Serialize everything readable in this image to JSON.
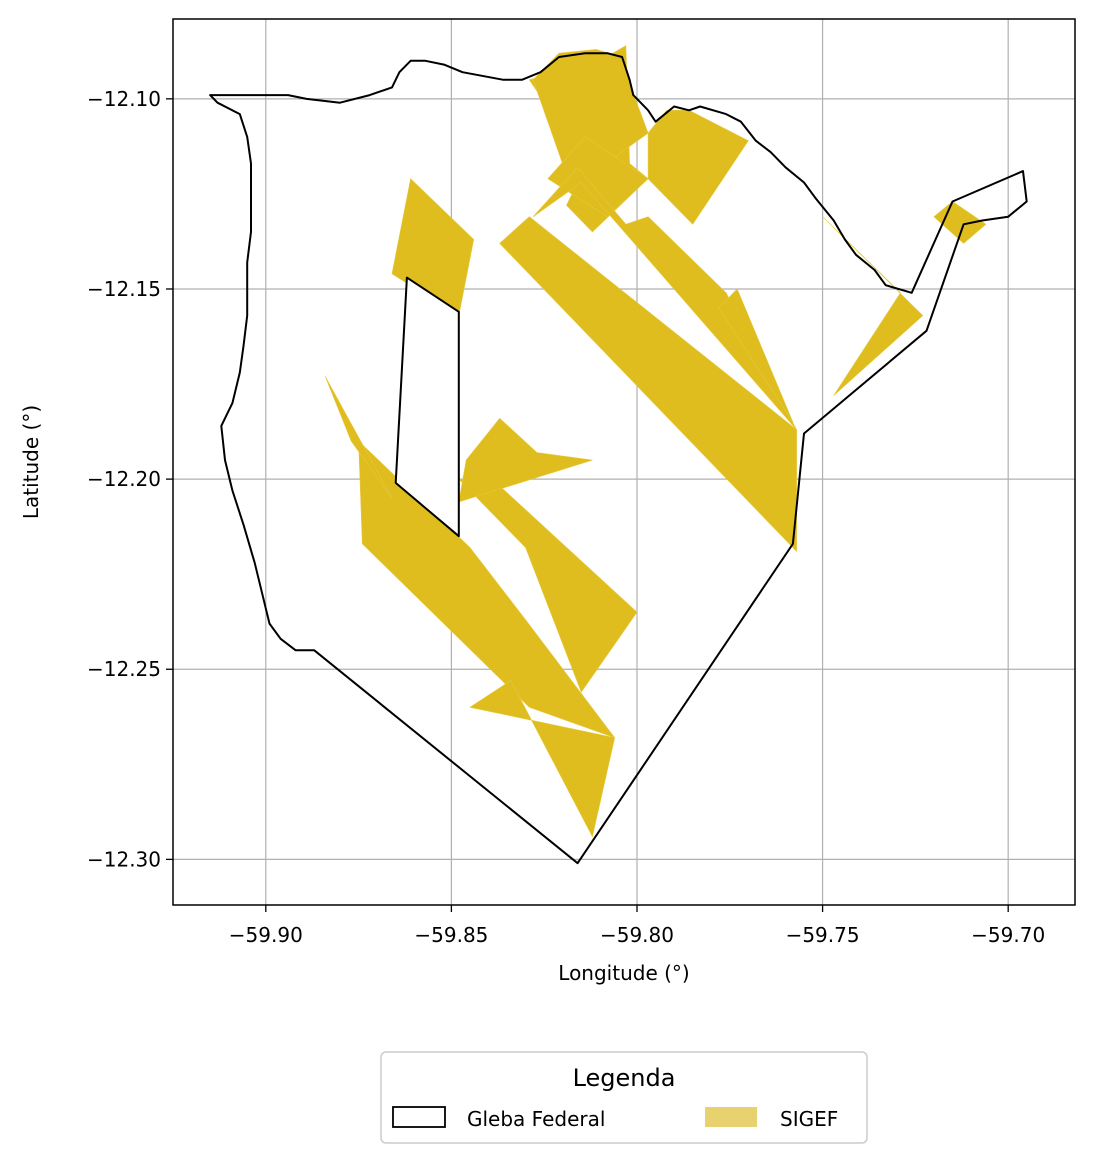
{
  "chart_data": {
    "type": "map",
    "xlabel": "Longitude (°)",
    "ylabel": "Latitude (°)",
    "xlim": [
      -59.925,
      -59.682
    ],
    "ylim": [
      -12.312,
      -12.079
    ],
    "grid": true,
    "x_ticks": [
      {
        "value": -59.9,
        "label": "−59.90"
      },
      {
        "value": -59.85,
        "label": "−59.85"
      },
      {
        "value": -59.8,
        "label": "−59.80"
      },
      {
        "value": -59.75,
        "label": "−59.75"
      },
      {
        "value": -59.7,
        "label": "−59.70"
      }
    ],
    "y_ticks": [
      {
        "value": -12.1,
        "label": "−12.10"
      },
      {
        "value": -12.15,
        "label": "−12.15"
      },
      {
        "value": -12.2,
        "label": "−12.20"
      },
      {
        "value": -12.25,
        "label": "−12.25"
      },
      {
        "value": -12.3,
        "label": "−12.30"
      }
    ],
    "legend": {
      "title": "Legenda",
      "placement": "bottom-center",
      "entries": [
        {
          "label": "Gleba Federal",
          "style": "outline",
          "color": "#000000"
        },
        {
          "label": "SIGEF",
          "style": "fill",
          "color": "#e8d26f"
        }
      ]
    },
    "colors": {
      "sigef": "#dfbd1f",
      "gleba": "#000000",
      "grid": "#b0b0b0"
    },
    "sigef_parcels": [
      [
        [
          -59.829,
          -12.095
        ],
        [
          -59.81,
          -12.09
        ],
        [
          -59.803,
          -12.086
        ],
        [
          -59.802,
          -12.117
        ],
        [
          -59.797,
          -12.121
        ],
        [
          -59.812,
          -12.135
        ],
        [
          -59.819,
          -12.128
        ],
        [
          -59.811,
          -12.112
        ],
        [
          -59.805,
          -12.11
        ],
        [
          -59.812,
          -12.119
        ],
        [
          -59.811,
          -12.121
        ]
      ],
      [
        [
          -59.828,
          -12.095
        ],
        [
          -59.821,
          -12.088
        ],
        [
          -59.811,
          -12.087
        ],
        [
          -59.804,
          -12.089
        ],
        [
          -59.802,
          -12.096
        ],
        [
          -59.797,
          -12.109
        ],
        [
          -59.807,
          -12.116
        ],
        [
          -59.819,
          -12.12
        ]
      ],
      [
        [
          -59.797,
          -12.109
        ],
        [
          -59.792,
          -12.103
        ],
        [
          -59.786,
          -12.103
        ],
        [
          -59.77,
          -12.111
        ],
        [
          -59.785,
          -12.133
        ],
        [
          -59.797,
          -12.121
        ]
      ],
      [
        [
          -59.824,
          -12.121
        ],
        [
          -59.814,
          -12.11
        ],
        [
          -59.797,
          -12.121
        ],
        [
          -59.808,
          -12.131
        ]
      ],
      [
        [
          -59.828,
          -12.131
        ],
        [
          -59.816,
          -12.118
        ],
        [
          -59.803,
          -12.133
        ],
        [
          -59.797,
          -12.131
        ],
        [
          -59.776,
          -12.151
        ],
        [
          -59.757,
          -12.187
        ],
        [
          -59.815,
          -12.122
        ]
      ],
      [
        [
          -59.837,
          -12.138
        ],
        [
          -59.829,
          -12.131
        ],
        [
          -59.757,
          -12.187
        ],
        [
          -59.757,
          -12.219
        ]
      ],
      [
        [
          -59.861,
          -12.121
        ],
        [
          -59.844,
          -12.137
        ],
        [
          -59.848,
          -12.157
        ],
        [
          -59.866,
          -12.146
        ]
      ],
      [
        [
          -59.75,
          -12.131
        ],
        [
          -59.723,
          -12.157
        ],
        [
          -59.747,
          -12.178
        ],
        [
          -59.729,
          -12.151
        ]
      ],
      [
        [
          -59.773,
          -12.15
        ],
        [
          -59.778,
          -12.155
        ],
        [
          -59.758,
          -12.185
        ]
      ],
      [
        [
          -59.715,
          -12.127
        ],
        [
          -59.706,
          -12.133
        ],
        [
          -59.712,
          -12.138
        ],
        [
          -59.72,
          -12.131
        ]
      ],
      [
        [
          -59.875,
          -12.19
        ],
        [
          -59.874,
          -12.217
        ],
        [
          -59.829,
          -12.26
        ],
        [
          -59.806,
          -12.268
        ],
        [
          -59.83,
          -12.237
        ],
        [
          -59.845,
          -12.218
        ]
      ],
      [
        [
          -59.848,
          -12.2
        ],
        [
          -59.839,
          -12.2
        ],
        [
          -59.8,
          -12.235
        ],
        [
          -59.815,
          -12.256
        ],
        [
          -59.83,
          -12.218
        ]
      ],
      [
        [
          -59.845,
          -12.26
        ],
        [
          -59.834,
          -12.253
        ],
        [
          -59.812,
          -12.294
        ],
        [
          -59.806,
          -12.268
        ]
      ],
      [
        [
          -59.846,
          -12.195
        ],
        [
          -59.837,
          -12.184
        ],
        [
          -59.827,
          -12.193
        ],
        [
          -59.812,
          -12.195
        ],
        [
          -59.848,
          -12.206
        ]
      ],
      [
        [
          -59.884,
          -12.173
        ],
        [
          -59.877,
          -12.19
        ],
        [
          -59.866,
          -12.205
        ]
      ]
    ],
    "gleba_boundary": [
      [
        -59.915,
        -12.099
      ],
      [
        -59.894,
        -12.099
      ],
      [
        -59.889,
        -12.1
      ],
      [
        -59.88,
        -12.101
      ],
      [
        -59.872,
        -12.099
      ],
      [
        -59.866,
        -12.097
      ],
      [
        -59.864,
        -12.093
      ],
      [
        -59.861,
        -12.09
      ],
      [
        -59.857,
        -12.09
      ],
      [
        -59.852,
        -12.091
      ],
      [
        -59.847,
        -12.093
      ],
      [
        -59.836,
        -12.095
      ],
      [
        -59.831,
        -12.095
      ],
      [
        -59.826,
        -12.093
      ],
      [
        -59.821,
        -12.089
      ],
      [
        -59.814,
        -12.088
      ],
      [
        -59.808,
        -12.088
      ],
      [
        -59.804,
        -12.089
      ],
      [
        -59.802,
        -12.095
      ],
      [
        -59.801,
        -12.099
      ],
      [
        -59.797,
        -12.103
      ],
      [
        -59.795,
        -12.106
      ],
      [
        -59.79,
        -12.102
      ],
      [
        -59.786,
        -12.103
      ],
      [
        -59.783,
        -12.102
      ],
      [
        -59.776,
        -12.104
      ],
      [
        -59.772,
        -12.106
      ],
      [
        -59.768,
        -12.111
      ],
      [
        -59.764,
        -12.114
      ],
      [
        -59.76,
        -12.118
      ],
      [
        -59.755,
        -12.122
      ],
      [
        -59.752,
        -12.126
      ],
      [
        -59.747,
        -12.132
      ],
      [
        -59.744,
        -12.137
      ],
      [
        -59.741,
        -12.141
      ],
      [
        -59.736,
        -12.145
      ],
      [
        -59.733,
        -12.149
      ],
      [
        -59.726,
        -12.151
      ],
      [
        -59.715,
        -12.127
      ],
      [
        -59.696,
        -12.119
      ],
      [
        -59.695,
        -12.127
      ],
      [
        -59.7,
        -12.131
      ],
      [
        -59.707,
        -12.132
      ],
      [
        -59.712,
        -12.133
      ],
      [
        -59.722,
        -12.161
      ],
      [
        -59.755,
        -12.188
      ],
      [
        -59.758,
        -12.217
      ],
      [
        -59.816,
        -12.301
      ],
      [
        -59.887,
        -12.245
      ],
      [
        -59.892,
        -12.245
      ],
      [
        -59.896,
        -12.242
      ],
      [
        -59.899,
        -12.238
      ],
      [
        -59.901,
        -12.23
      ],
      [
        -59.903,
        -12.222
      ],
      [
        -59.906,
        -12.212
      ],
      [
        -59.909,
        -12.203
      ],
      [
        -59.911,
        -12.195
      ],
      [
        -59.912,
        -12.186
      ],
      [
        -59.909,
        -12.18
      ],
      [
        -59.907,
        -12.172
      ],
      [
        -59.906,
        -12.165
      ],
      [
        -59.905,
        -12.157
      ],
      [
        -59.905,
        -12.15
      ],
      [
        -59.905,
        -12.143
      ],
      [
        -59.904,
        -12.135
      ],
      [
        -59.904,
        -12.127
      ],
      [
        -59.904,
        -12.117
      ],
      [
        -59.905,
        -12.11
      ],
      [
        -59.907,
        -12.104
      ],
      [
        -59.913,
        -12.101
      ],
      [
        -59.915,
        -12.099
      ]
    ],
    "gleba_inner_hole": [
      [
        -59.862,
        -12.147
      ],
      [
        -59.848,
        -12.156
      ],
      [
        -59.848,
        -12.215
      ],
      [
        -59.865,
        -12.201
      ]
    ]
  }
}
